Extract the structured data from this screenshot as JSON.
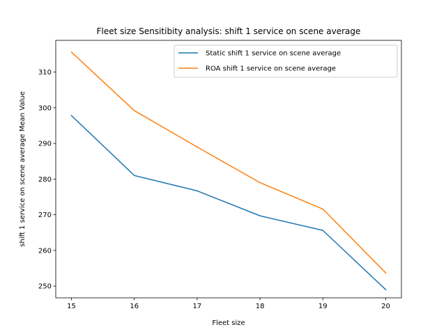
{
  "chart_data": {
    "type": "line",
    "title": "Fleet size Sensitibity analysis: shift 1 service on scene average",
    "xlabel": "Fleet size",
    "ylabel": "shift 1 service on scene average Mean Value",
    "x": [
      15,
      16,
      17,
      18,
      19,
      20
    ],
    "xticks": [
      15,
      16,
      17,
      18,
      19,
      20
    ],
    "yticks": [
      250,
      260,
      270,
      280,
      290,
      300,
      310
    ],
    "xlim": [
      14.75,
      20.25
    ],
    "ylim": [
      246.7,
      318.9
    ],
    "grid": false,
    "legend_position": "top-right",
    "series": [
      {
        "name": "Static shift 1 service on scene average",
        "color": "#1f77b4",
        "values": [
          297.8,
          281.0,
          276.7,
          269.7,
          265.6,
          249.0
        ]
      },
      {
        "name": "ROA shift 1 service on scene average",
        "color": "#ff7f0e",
        "values": [
          315.6,
          299.2,
          289.0,
          279.0,
          271.6,
          253.7
        ]
      }
    ]
  }
}
